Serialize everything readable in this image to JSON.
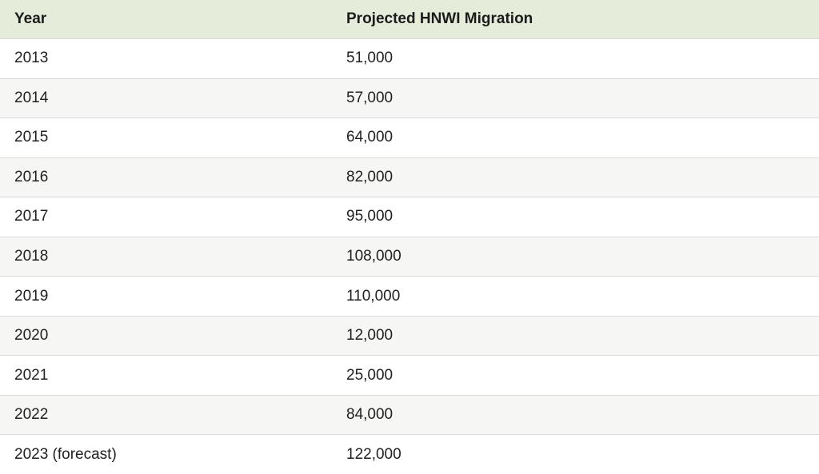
{
  "colors": {
    "header_bg": "#e5ecd9",
    "header_text": "#1c1c1c",
    "text": "#212121",
    "row_bg": "#ffffff",
    "row_alt_bg": "#f6f6f5",
    "row_border": "#d9d9d9"
  },
  "table": {
    "columns": [
      {
        "label": "Year"
      },
      {
        "label": "Projected HNWI Migration"
      }
    ],
    "rows": [
      {
        "year": "2013",
        "value": "51,000"
      },
      {
        "year": "2014",
        "value": "57,000"
      },
      {
        "year": "2015",
        "value": "64,000"
      },
      {
        "year": "2016",
        "value": "82,000"
      },
      {
        "year": "2017",
        "value": "95,000"
      },
      {
        "year": "2018",
        "value": "108,000"
      },
      {
        "year": "2019",
        "value": "110,000"
      },
      {
        "year": "2020",
        "value": "12,000"
      },
      {
        "year": "2021",
        "value": "25,000"
      },
      {
        "year": "2022",
        "value": "84,000"
      },
      {
        "year": "2023 (forecast)",
        "value": "122,000"
      }
    ]
  },
  "chart_data": {
    "type": "table",
    "title": "Projected HNWI Migration",
    "columns": [
      "Year",
      "Projected HNWI Migration"
    ],
    "categories": [
      "2013",
      "2014",
      "2015",
      "2016",
      "2017",
      "2018",
      "2019",
      "2020",
      "2021",
      "2022",
      "2023 (forecast)"
    ],
    "values": [
      51000,
      57000,
      64000,
      82000,
      95000,
      108000,
      110000,
      12000,
      25000,
      84000,
      122000
    ],
    "layout": {
      "striped_rows": true,
      "header_background": "#e5ecd9"
    }
  }
}
